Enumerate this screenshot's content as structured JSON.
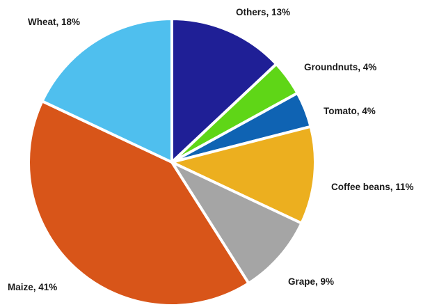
{
  "chart_data": {
    "type": "pie",
    "title": "",
    "start_angle_deg": 0,
    "direction": "clockwise",
    "slices": [
      {
        "name": "Others",
        "value": 13,
        "label": "Others, 13%",
        "color": "#1f1f96"
      },
      {
        "name": "Groundnuts",
        "value": 4,
        "label": "Groundnuts, 4%",
        "color": "#5fd617"
      },
      {
        "name": "Tomato",
        "value": 4,
        "label": "Tomato, 4%",
        "color": "#0f63b3"
      },
      {
        "name": "Coffee beans",
        "value": 11,
        "label": "Coffee beans, 11%",
        "color": "#ecaf1f"
      },
      {
        "name": "Grape",
        "value": 9,
        "label": "Grape, 9%",
        "color": "#a5a5a5"
      },
      {
        "name": "Maize",
        "value": 41,
        "label": "Maize, 41%",
        "color": "#d85519"
      },
      {
        "name": "Wheat",
        "value": 18,
        "label": "Wheat, 18%",
        "color": "#4fbfee"
      }
    ]
  }
}
